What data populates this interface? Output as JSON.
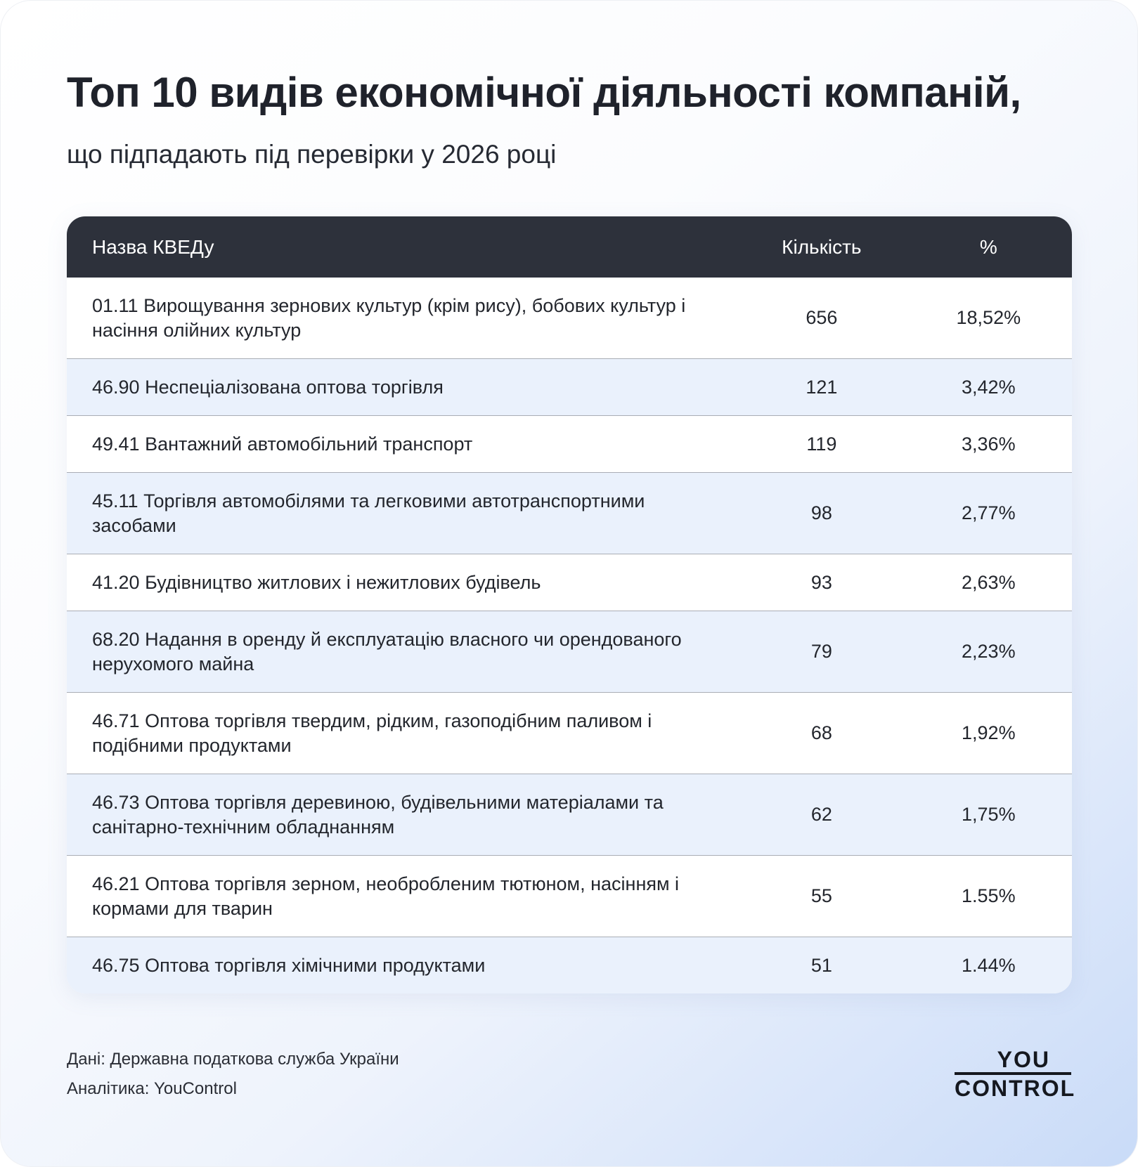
{
  "title": "Топ 10 видів економічної діяльності компаній,",
  "subtitle": "що підпадають під перевірки у 2026 році",
  "table": {
    "headers": [
      "Назва КВЕДу",
      "Кількість",
      "%"
    ],
    "rows": [
      {
        "name": "01.11 Вирощування зернових культур (крім рису), бобових культур і насіння олійних культур",
        "count": "656",
        "percent": "18,52%"
      },
      {
        "name": "46.90 Неспеціалізована оптова торгівля",
        "count": "121",
        "percent": "3,42%"
      },
      {
        "name": "49.41 Вантажний автомобільний транспорт",
        "count": "119",
        "percent": "3,36%"
      },
      {
        "name": "45.11 Торгівля автомобілями та легковими автотранспортними засобами",
        "count": "98",
        "percent": "2,77%"
      },
      {
        "name": "41.20 Будівництво житлових і нежитлових будівель",
        "count": "93",
        "percent": "2,63%"
      },
      {
        "name": "68.20 Надання в оренду й експлуатацію власного чи орендованого нерухомого майна",
        "count": "79",
        "percent": "2,23%"
      },
      {
        "name": "46.71 Оптова торгівля твердим, рідким, газоподібним паливом і подібними продуктами",
        "count": "68",
        "percent": "1,92%"
      },
      {
        "name": "46.73 Оптова торгівля деревиною, будівельними матеріалами та санітарно-технічним обладнанням",
        "count": "62",
        "percent": "1,75%"
      },
      {
        "name": "46.21 Оптова торгівля зерном, необробленим тютюном, насінням і кормами для тварин",
        "count": "55",
        "percent": "1.55%"
      },
      {
        "name": "46.75 Оптова торгівля хімічними продуктами",
        "count": "51",
        "percent": "1.44%"
      }
    ]
  },
  "footer": {
    "source": "Дані: Державна податкова служба України",
    "analytics": "Аналітика: YouControl"
  },
  "logo": {
    "line1": "YOU",
    "line2": "CONTROL"
  },
  "colors": {
    "header_bg": "#2d313b",
    "row_alt": "#eaf1fc",
    "text": "#1f222b"
  }
}
